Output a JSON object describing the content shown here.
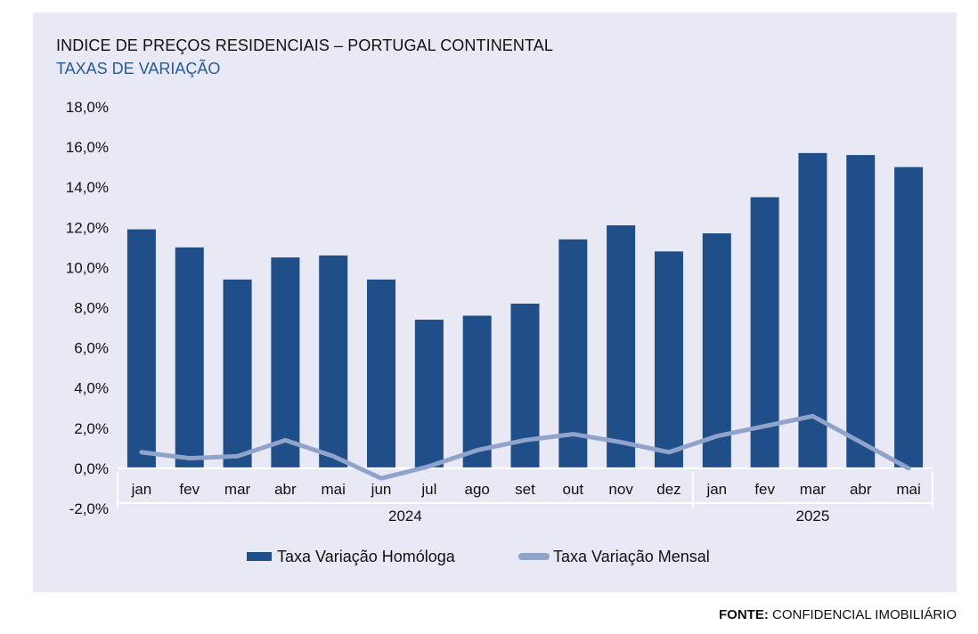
{
  "chart_data": {
    "type": "bar",
    "title": "INDICE DE PREÇOS RESIDENCIAIS – PORTUGAL CONTINENTAL",
    "subtitle": "TAXAS DE VARIAÇÃO",
    "categories": [
      "jan",
      "fev",
      "mar",
      "abr",
      "mai",
      "jun",
      "jul",
      "ago",
      "set",
      "out",
      "nov",
      "dez",
      "jan",
      "fev",
      "mar",
      "abr",
      "mai"
    ],
    "year_groups": [
      {
        "label": "2024",
        "count": 12
      },
      {
        "label": "2025",
        "count": 5
      }
    ],
    "series": [
      {
        "name": "Taxa Variação Homóloga",
        "type": "bar",
        "color": "#1f4e89",
        "values": [
          11.9,
          11.0,
          9.4,
          10.5,
          10.6,
          9.4,
          7.4,
          7.6,
          8.2,
          11.4,
          12.1,
          10.8,
          11.7,
          13.5,
          15.7,
          15.6,
          15.0
        ]
      },
      {
        "name": "Taxa Variação Mensal",
        "type": "line",
        "color": "#8fa3cb",
        "values": [
          0.8,
          0.5,
          0.6,
          1.4,
          0.6,
          -0.5,
          0.1,
          0.9,
          1.4,
          1.7,
          1.3,
          0.8,
          1.6,
          2.1,
          2.6,
          1.3,
          0.0
        ]
      }
    ],
    "y_ticks": [
      "18,0%",
      "16,0%",
      "14,0%",
      "12,0%",
      "10,0%",
      "8,0%",
      "6,0%",
      "4,0%",
      "2,0%",
      "0,0%",
      "-2,0%"
    ],
    "ylim": [
      -2,
      18
    ],
    "grid": false,
    "legend_position": "bottom"
  },
  "source_label": "FONTE:",
  "source_text": " CONFIDENCIAL IMOBILIÁRIO"
}
